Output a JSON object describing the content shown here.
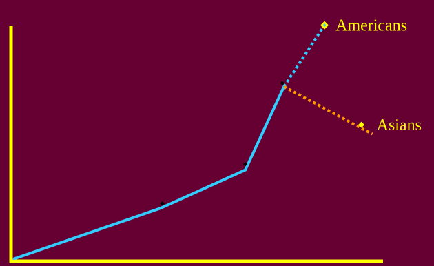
{
  "colors": {
    "background": "#660033",
    "axis": "#ffff00",
    "main_line": "#33ccff",
    "asians_line": "#ff9900",
    "marker": "#000000",
    "label_marker": "#ffff00",
    "label_text": "#ffff00"
  },
  "chart_data": {
    "type": "line",
    "title": "",
    "xlabel": "",
    "ylabel": "",
    "xlim": [
      0,
      10
    ],
    "ylim": [
      0,
      10
    ],
    "grid": false,
    "tick_labels": false,
    "series": [
      {
        "name": "",
        "style": "solid",
        "x": [
          0,
          4,
          6.3,
          7.35
        ],
        "y": [
          0,
          2.2,
          3.85,
          7.45
        ]
      },
      {
        "name": "Americans",
        "style": "dotted",
        "x": [
          7.35,
          8.45
        ],
        "y": [
          7.45,
          10.1
        ]
      },
      {
        "name": "Asians",
        "style": "dotted",
        "x": [
          7.35,
          9.75
        ],
        "y": [
          7.45,
          5.4
        ]
      }
    ],
    "markers": [
      {
        "x": 4.05,
        "y": 2.4
      },
      {
        "x": 6.3,
        "y": 4.1
      },
      {
        "x": 7.3,
        "y": 7.6
      }
    ],
    "labels": [
      {
        "series": "Americans",
        "text": "Americans",
        "x": 8.45,
        "y": 10.1
      },
      {
        "series": "Asians",
        "text": "Asians",
        "x": 9.45,
        "y": 5.8
      }
    ]
  }
}
